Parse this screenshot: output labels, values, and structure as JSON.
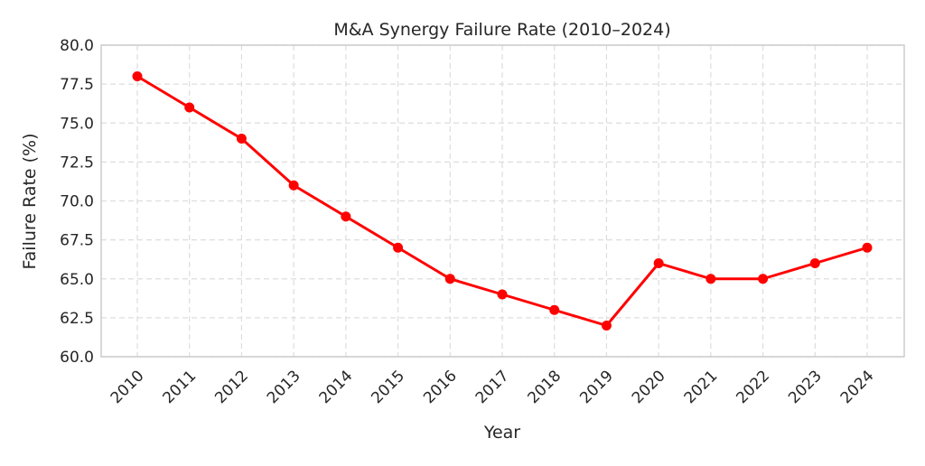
{
  "chart_data": {
    "type": "line",
    "title": "M&A Synergy Failure Rate (2010–2024)",
    "xlabel": "Year",
    "ylabel": "Failure Rate (%)",
    "categories": [
      "2010",
      "2011",
      "2012",
      "2013",
      "2014",
      "2015",
      "2016",
      "2017",
      "2018",
      "2019",
      "2020",
      "2021",
      "2022",
      "2023",
      "2024"
    ],
    "values": [
      78,
      76,
      74,
      71,
      69,
      67,
      65,
      64,
      63,
      62,
      66,
      65,
      65,
      66,
      67
    ],
    "ylim": [
      60,
      80
    ],
    "yticks": [
      "60.0",
      "62.5",
      "65.0",
      "67.5",
      "70.0",
      "72.5",
      "75.0",
      "77.5",
      "80.0"
    ],
    "grid": true,
    "grid_style": "dashed",
    "marker": "circle",
    "line_color": "#ff0000",
    "x_tick_rotation": 45
  }
}
